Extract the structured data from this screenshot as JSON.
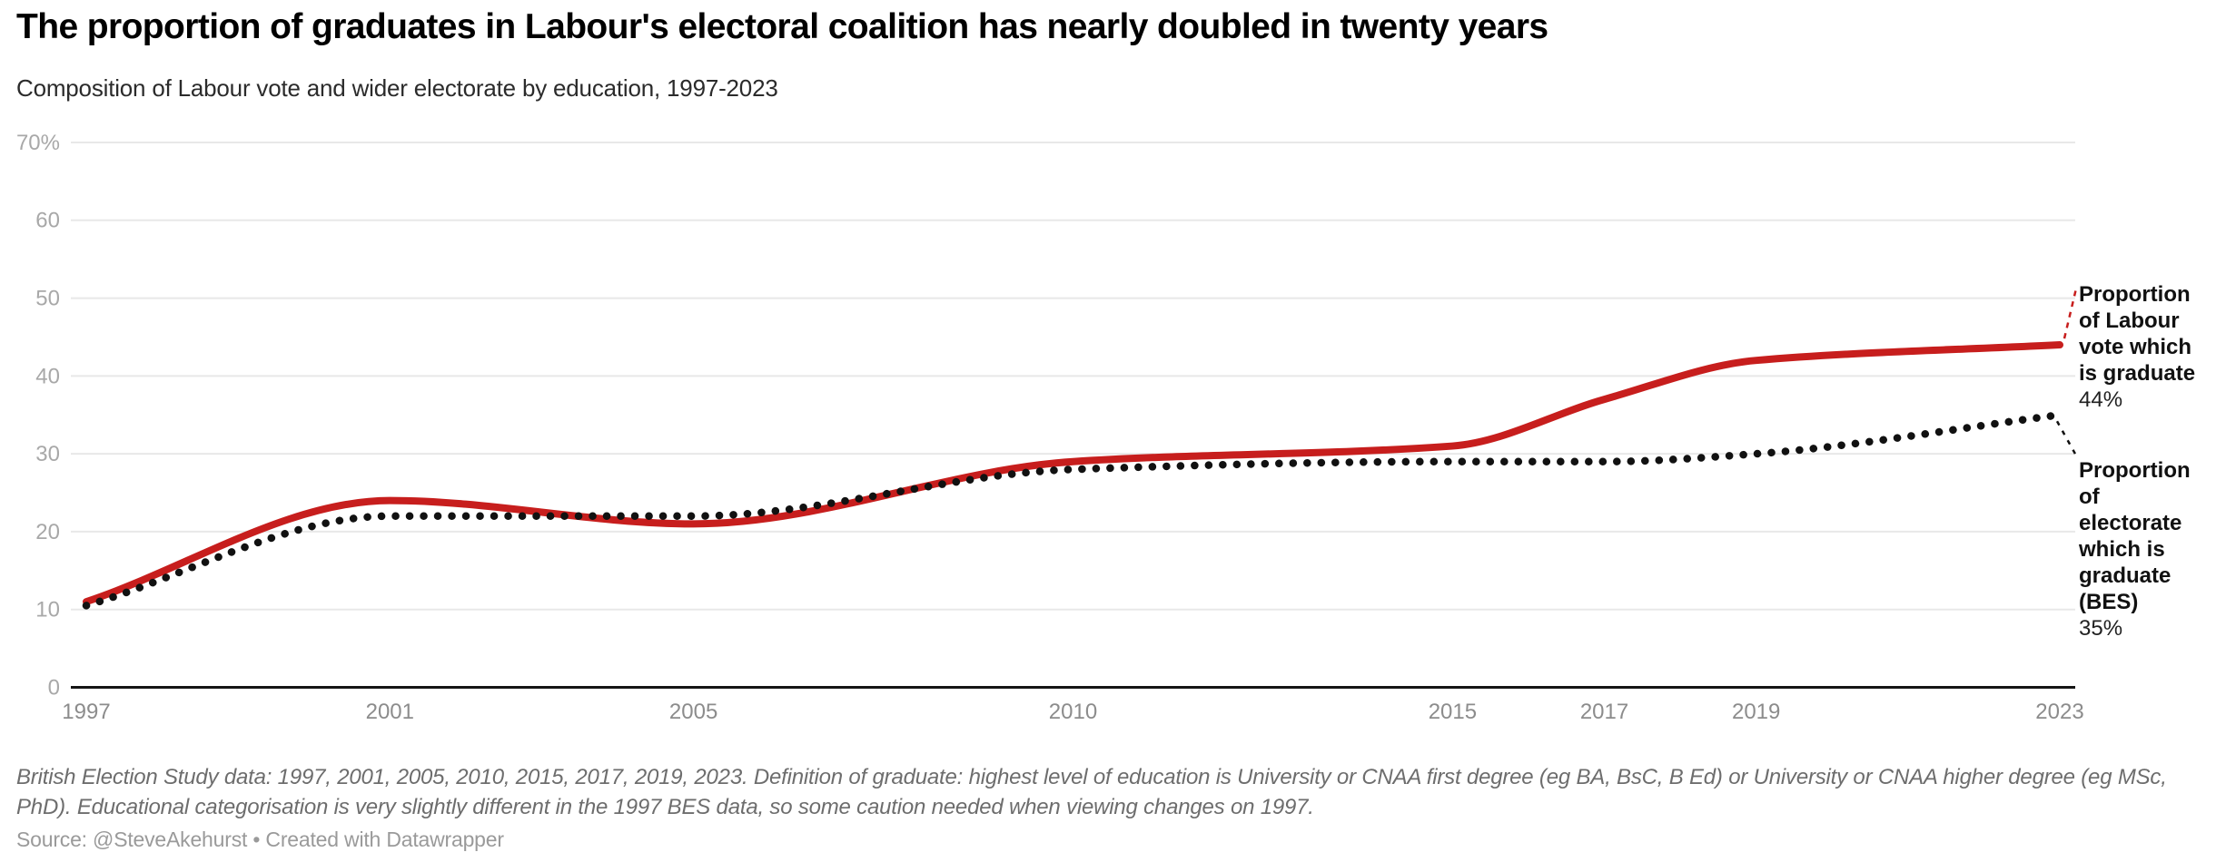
{
  "header": {
    "title": "The proportion of graduates in Labour's electoral coalition has nearly doubled in twenty years",
    "subtitle": "Composition of Labour vote and wider electorate by education, 1997-2023"
  },
  "chart_data": {
    "type": "line",
    "x": [
      1997,
      2001,
      2005,
      2010,
      2015,
      2017,
      2019,
      2023
    ],
    "series": [
      {
        "name": "Proportion of Labour vote which is graduate",
        "color": "#c71e1d",
        "line_style": "solid",
        "values": [
          11,
          24,
          21,
          29,
          31,
          37,
          42,
          44
        ]
      },
      {
        "name": "Proportion of electorate which is graduate (BES)",
        "color": "#111111",
        "line_style": "dotted",
        "values": [
          10.5,
          22,
          22,
          28,
          29,
          29,
          30,
          35
        ]
      }
    ],
    "xlabel": "",
    "ylabel": "",
    "xlim": [
      1997,
      2023
    ],
    "ylim": [
      0,
      70
    ],
    "yticks": [
      {
        "value": 70,
        "label": "70%"
      },
      {
        "value": 60,
        "label": "60"
      },
      {
        "value": 50,
        "label": "50"
      },
      {
        "value": 40,
        "label": "40"
      },
      {
        "value": 30,
        "label": "30"
      },
      {
        "value": 20,
        "label": "20"
      },
      {
        "value": 10,
        "label": "10"
      },
      {
        "value": 0,
        "label": "0"
      }
    ],
    "xticks": [
      {
        "value": 1997,
        "label": "1997"
      },
      {
        "value": 2001,
        "label": "2001"
      },
      {
        "value": 2005,
        "label": "2005"
      },
      {
        "value": 2010,
        "label": "2010"
      },
      {
        "value": 2015,
        "label": "2015"
      },
      {
        "value": 2017,
        "label": "2017"
      },
      {
        "value": 2019,
        "label": "2019"
      },
      {
        "value": 2023,
        "label": "2023"
      }
    ],
    "grid": "horizontal",
    "legend_position": "right-margin end-of-line annotations"
  },
  "annotations": [
    {
      "label": "Proportion of Labour vote which is graduate",
      "value": "44%",
      "color": "#c71e1d"
    },
    {
      "label": "Proportion of electorate which is graduate (BES)",
      "value": "35%",
      "color": "#111111"
    }
  ],
  "footer": {
    "note": "British Election Study data: 1997, 2001, 2005, 2010, 2015, 2017, 2019, 2023. Definition of graduate: highest level of education is University or CNAA first degree (eg BA, BsC, B Ed) or University or CNAA higher degree (eg MSc, PhD). Educational categorisation is very slightly different in the 1997 BES data, so some caution needed when viewing changes on 1997.",
    "source": "Source: @SteveAkehurst • Created with Datawrapper"
  },
  "colors": {
    "labour_line": "#c71e1d",
    "electorate_line": "#111111",
    "gridline": "#e8e8e8",
    "baseline": "#151515",
    "y_tick_label": "#a8a8a8",
    "x_tick_label": "#8c8c8c",
    "note_text": "#6d6d6d",
    "source_text": "#9a9a9a"
  }
}
